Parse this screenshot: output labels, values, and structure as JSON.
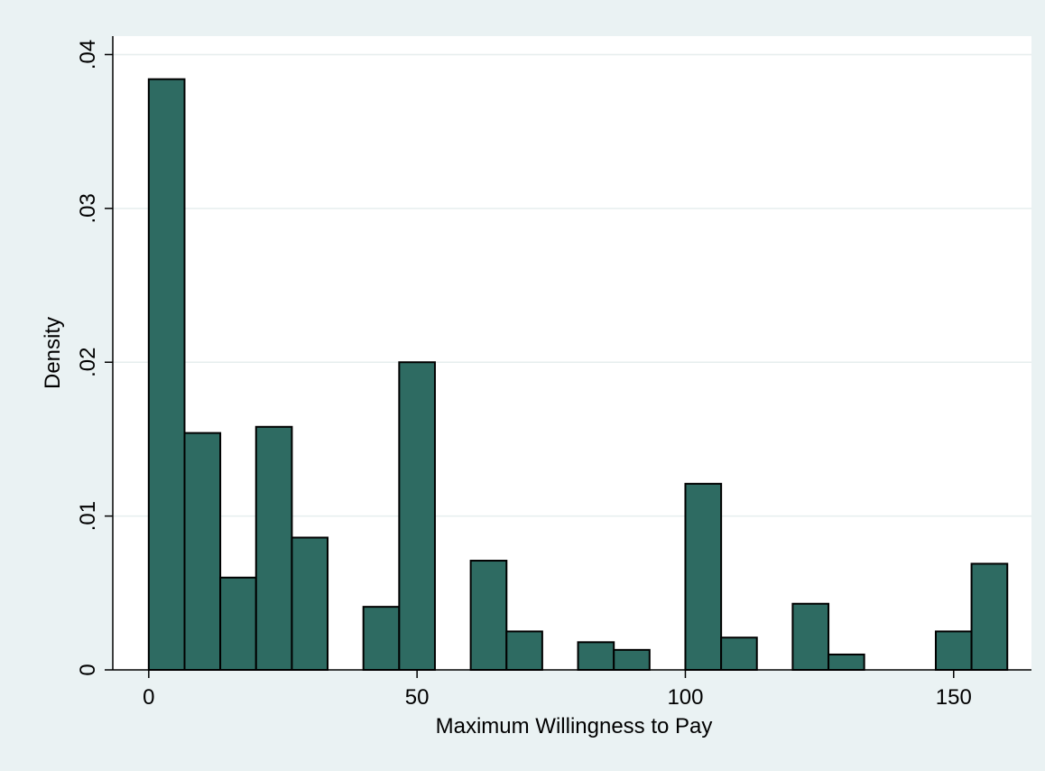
{
  "chart_data": {
    "type": "bar",
    "title": "",
    "xlabel": "Maximum Willingness to Pay",
    "ylabel": "Density",
    "x_ticks": [
      0,
      50,
      100,
      150
    ],
    "y_ticks": [
      0,
      0.01,
      0.02,
      0.03,
      0.04
    ],
    "x_tick_labels": [
      "0",
      "50",
      "100",
      "150"
    ],
    "y_tick_labels": [
      "0",
      ".01",
      ".02",
      ".03",
      ".04"
    ],
    "xlim": [
      -6.7,
      164.5
    ],
    "ylim": [
      0,
      0.0412
    ],
    "bin_width": 6.67,
    "bins": [
      {
        "start": 0.0,
        "end": 6.67,
        "density": 0.0384
      },
      {
        "start": 6.67,
        "end": 13.33,
        "density": 0.0154
      },
      {
        "start": 13.33,
        "end": 20.0,
        "density": 0.006
      },
      {
        "start": 20.0,
        "end": 26.67,
        "density": 0.0158
      },
      {
        "start": 26.67,
        "end": 33.33,
        "density": 0.0086
      },
      {
        "start": 40.0,
        "end": 46.67,
        "density": 0.0041
      },
      {
        "start": 46.67,
        "end": 53.33,
        "density": 0.02
      },
      {
        "start": 60.0,
        "end": 66.67,
        "density": 0.0071
      },
      {
        "start": 66.67,
        "end": 73.33,
        "density": 0.0025
      },
      {
        "start": 80.0,
        "end": 86.67,
        "density": 0.0018
      },
      {
        "start": 86.67,
        "end": 93.33,
        "density": 0.0013
      },
      {
        "start": 100.0,
        "end": 106.67,
        "density": 0.0121
      },
      {
        "start": 106.67,
        "end": 113.33,
        "density": 0.0021
      },
      {
        "start": 120.0,
        "end": 126.67,
        "density": 0.0043
      },
      {
        "start": 126.67,
        "end": 133.33,
        "density": 0.001
      },
      {
        "start": 146.67,
        "end": 153.33,
        "density": 0.0025
      },
      {
        "start": 153.33,
        "end": 160.0,
        "density": 0.0069
      }
    ],
    "grid": true,
    "legend": "none",
    "colors": {
      "bar_fill": "#2e6b62",
      "bar_stroke": "#000000",
      "plot_background": "#ffffff",
      "outer_background": "#eaf2f3",
      "grid": "#e6eeee"
    }
  }
}
